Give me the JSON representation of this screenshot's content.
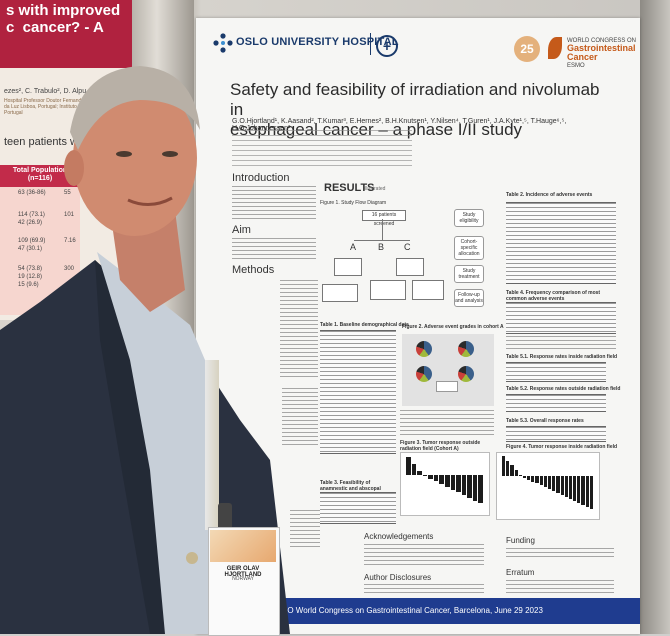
{
  "left_poster": {
    "title": "s with improved\nc  cancer? - A",
    "authors": "ezes², C. Trabulo², D. Alpu",
    "affil_line": "Hospital Professor Doutor Fernando Fonseca ... Hospital da Luz Lisboa, Portugal; Instituto Gulbenkian de Ciência, Portugal",
    "small_text": "teen patients were",
    "table_header": "Total Population (n=116)",
    "table_rows": [
      {
        "a": "63 (36-86)",
        "b": "55"
      },
      {
        "a": "114 (73.1)",
        "b": "101"
      },
      {
        "a": "42 (26.9)",
        "b": ""
      },
      {
        "a": "109 (69.9)",
        "b": "7.16"
      },
      {
        "a": "47 (30.1)",
        "b": ""
      },
      {
        "a": "54 (73.8)",
        "b": "300"
      },
      {
        "a": "19 (12.8)",
        "b": ""
      },
      {
        "a": "15 (9.6)",
        "b": ""
      }
    ]
  },
  "poster": {
    "hospital": "OSLO UNIVERSITY HOSPITAL",
    "congress": {
      "badge_number": "25",
      "name_line1": "WORLD CONGRESS ON",
      "name_line2": "Gastrointestinal",
      "name_line3": "Cancer",
      "org": "ESMO"
    },
    "title_line1": "Safety and feasibility of irradiation and nivolumab in",
    "title_line2": "esophageal cancer – a phase I/II study",
    "authors": "G.O.Hjortland¹, K.Aasand², T.Kumar³, E.Hernes², B.H.Knutsen¹, Y.Nilsen⁴, T.Guren¹, J.A.Kyte¹,⁵, T.Hauge⁶,⁵, H.O.Johannessen³",
    "sections": {
      "introduction": "Introduction",
      "aim": "Aim",
      "methods": "Methods",
      "results": "RESULTS",
      "results_sub": "illustrated",
      "acknowledgements": "Acknowledgements",
      "author_disclosures": "Author Disclosures",
      "funding": "Funding",
      "erratum": "Erratum"
    },
    "figure1_caption": "Figure 1. Study Flow Diagram",
    "flow": {
      "top_box": "16 patients screened",
      "letters": [
        "A",
        "B",
        "C"
      ],
      "side_steps": [
        "Study eligibility",
        "Cohort-specific allocation",
        "Study treatment",
        "Follow-up and analysis"
      ]
    },
    "table1_caption": "Table 1. Baseline demographical data",
    "figure2_caption": "Figure 2. Adverse event grades in cohort A",
    "table2_caption": "Table 2. Incidence of adverse events",
    "table3_caption": "Table 3. Feasibility of anamnestic and abscopal effects",
    "table4_caption": "Table 4. Frequency comparison of most common adverse events",
    "table5_caption": "Table 5.1. Response rates inside radiation field",
    "table6_caption": "Table 5.2. Response rates outside radiation field",
    "table7_caption": "Table 5.3. Overall response rates",
    "figure3_caption": "Figure 3. Tumor response outside radiation field (Cohort A)",
    "figure4_caption": "Figure 4. Tumor response inside radiation field",
    "footer": "ESMO World Congress on Gastrointestinal Cancer, Barcelona, June 29 2023"
  },
  "badge": {
    "name": "GEIR OLAV HJORTLAND",
    "sub": "NORWAY"
  }
}
